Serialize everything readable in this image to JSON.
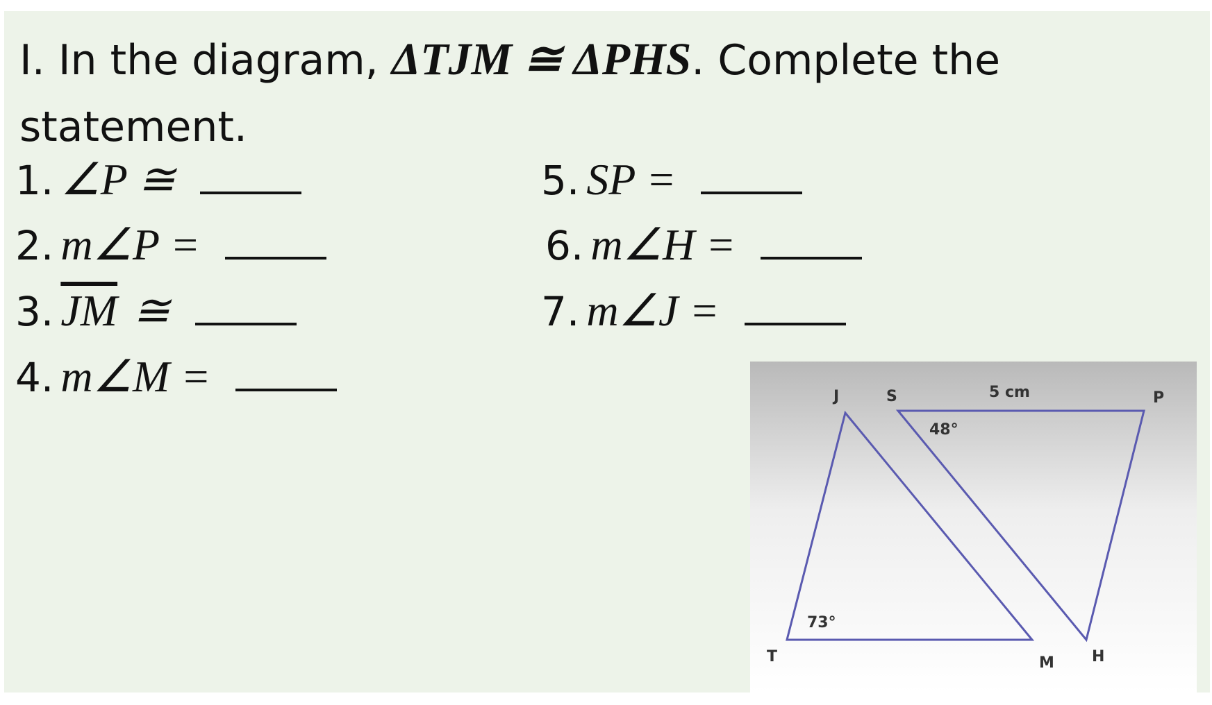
{
  "instruction": {
    "prefix": "I. In the diagram, ",
    "math": "ΔTJM ≅ ΔPHS",
    "suffix": ". Complete the statement."
  },
  "items": [
    {
      "number": "1.",
      "expr": "∠P ≅"
    },
    {
      "number": "2.",
      "expr": "m∠P ="
    },
    {
      "number": "3.",
      "segment": "JM",
      "expr": "≅"
    },
    {
      "number": "4.",
      "expr": "m∠M ="
    },
    {
      "number": "5.",
      "expr": "SP ="
    },
    {
      "number": "6.",
      "expr": "m∠H ="
    },
    {
      "number": "7.",
      "expr": "m∠J ="
    }
  ],
  "diagram": {
    "vertices": [
      "J",
      "S",
      "P",
      "T",
      "M",
      "H"
    ],
    "side_label": "5 cm",
    "angle_labels": [
      "48°",
      "73°"
    ]
  }
}
